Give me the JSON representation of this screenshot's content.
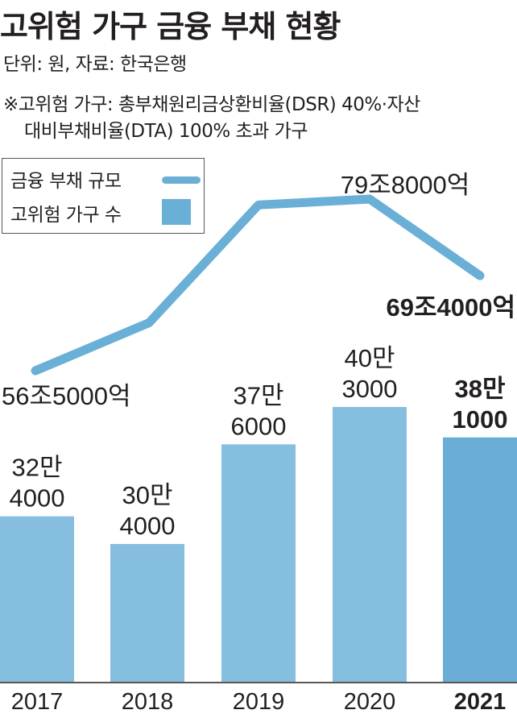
{
  "title": "고위험 가구 금융 부채 현황",
  "unit_note": "단위: 원, 자료: 한국은행",
  "definition_line1": "※고위험 가구: 총부채원리금상환비율(DSR) 40%·자산",
  "definition_line2": "대비부채비율(DTA) 100% 초과 가구",
  "legend": {
    "line_label": "금융 부채 규모",
    "bar_label": "고위험 가구 수"
  },
  "colors": {
    "bar": "#86bedf",
    "bar_highlight": "#6aaed6",
    "line": "#6aafd6",
    "text": "#231f20"
  },
  "chart_data": {
    "type": "bar",
    "categories": [
      "2017",
      "2018",
      "2019",
      "2020",
      "2021"
    ],
    "series": [
      {
        "name": "고위험 가구 수",
        "type": "bar",
        "values": [
          324000,
          304000,
          376000,
          403000,
          381000
        ],
        "labels": [
          [
            "32만",
            "4000"
          ],
          [
            "30만",
            "4000"
          ],
          [
            "37만",
            "6000"
          ],
          [
            "40만",
            "3000"
          ],
          [
            "38만",
            "1000"
          ]
        ]
      },
      {
        "name": "금융 부채 규모",
        "type": "line",
        "values": [
          56.5,
          63.0,
          79.0,
          79.8,
          69.4
        ],
        "labels": [
          "56조5000억",
          "",
          "",
          "79조8000억",
          "69조4000억"
        ]
      }
    ],
    "highlight_category": "2021",
    "legend_position": "top-left"
  }
}
